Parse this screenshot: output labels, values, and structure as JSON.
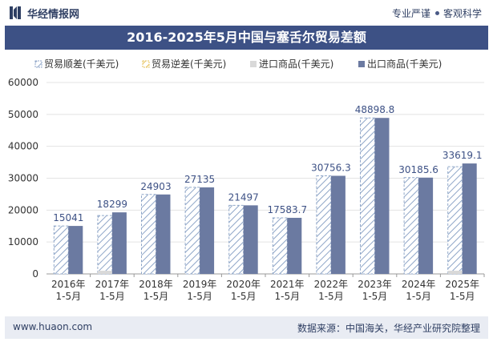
{
  "header": {
    "brand": "华经情报网",
    "slogan_left": "专业严谨",
    "slogan_right": "客观科学"
  },
  "footer": {
    "website": "www.huaon.com",
    "source": "数据来源：中国海关，华经产业研究院整理"
  },
  "colors": {
    "title_bg": "#3d5185",
    "export_bar": "#6b7aa1",
    "surplus_hatch": "#8fa6c8",
    "deficit_hatch": "#e6c25a",
    "import_bar": "#d9d9d9"
  },
  "chart_data": {
    "type": "bar",
    "title": "2016-2025年5月中国与塞舌尔贸易差额",
    "categories": [
      "2016年\n1-5月",
      "2017年\n1-5月",
      "2018年\n1-5月",
      "2019年\n1-5月",
      "2020年\n1-5月",
      "2021年\n1-5月",
      "2022年\n1-5月",
      "2023年\n1-5月",
      "2024年\n1-5月",
      "2025年\n1-5月"
    ],
    "ylim": [
      0,
      60000
    ],
    "yticks": [
      0,
      10000,
      20000,
      30000,
      40000,
      50000,
      60000
    ],
    "legend_position": "top",
    "series": [
      {
        "name": "贸易顺差(千美元)",
        "values": [
          15041,
          18299,
          24903,
          27135,
          21497,
          17583.7,
          30756.3,
          48898.8,
          30185.6,
          33619.1
        ],
        "labels": [
          "15041",
          "18299",
          "24903",
          "27135",
          "21497",
          "17583.7",
          "30756.3",
          "48898.8",
          "30185.6",
          "33619.1"
        ]
      },
      {
        "name": "贸易逆差(千美元)",
        "values": [
          0,
          0,
          0,
          0,
          0,
          0,
          0,
          0,
          0,
          0
        ]
      },
      {
        "name": "进口商品(千美元)",
        "values": [
          0,
          1000,
          0,
          0,
          0,
          0,
          0,
          0,
          0,
          1000
        ]
      },
      {
        "name": "出口商品(千美元)",
        "values": [
          15041,
          19299,
          24903,
          27135,
          21497,
          17583.7,
          30756.3,
          48898.8,
          30185.6,
          34619.1
        ]
      }
    ]
  }
}
